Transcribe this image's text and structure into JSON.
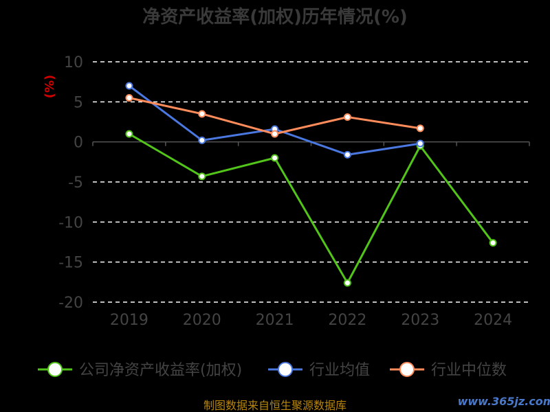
{
  "chart_data": {
    "type": "line",
    "title": "净资产收益率(加权)历年情况(%)",
    "ylabel": "(%)",
    "categories": [
      "2019",
      "2020",
      "2021",
      "2022",
      "2023",
      "2024"
    ],
    "ylim": [
      -20,
      10
    ],
    "yticks": [
      10,
      5,
      0,
      -5,
      -10,
      -15,
      -20
    ],
    "grid": true,
    "legend": "bottom",
    "series": [
      {
        "name": "公司净资产收益率(加权)",
        "color": "#52c41a",
        "values": [
          1.0,
          -4.3,
          -2.0,
          -17.6,
          -0.5,
          -12.6
        ]
      },
      {
        "name": "行业均值",
        "color": "#4a78e0",
        "values": [
          7.0,
          0.2,
          1.6,
          -1.6,
          -0.2,
          null
        ]
      },
      {
        "name": "行业中位数",
        "color": "#ff8c5a",
        "values": [
          5.5,
          3.5,
          1.0,
          3.1,
          1.7,
          null
        ]
      }
    ]
  },
  "footer": {
    "source": "制图数据来自恒生聚源数据库",
    "watermark": "www.365jz.com"
  }
}
